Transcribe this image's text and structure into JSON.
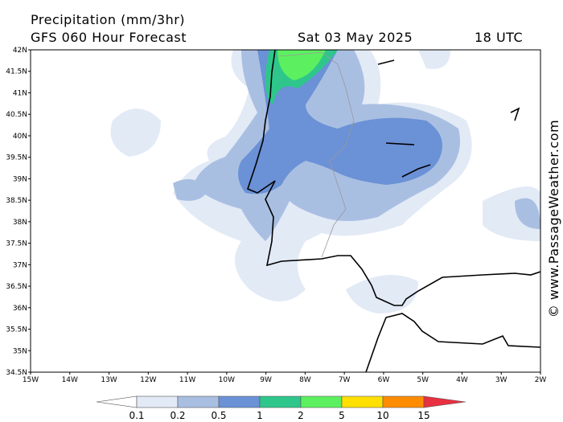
{
  "header": {
    "title": "Precipitation (mm/3hr)",
    "model": "GFS 060 Hour Forecast",
    "date": "Sat 03 May 2025",
    "time": "18 UTC"
  },
  "watermark": "© www.PassageWeather.com",
  "axes": {
    "lon_labels": [
      "15W",
      "14W",
      "13W",
      "12W",
      "11W",
      "10W",
      "9W",
      "8W",
      "7W",
      "6W",
      "5W",
      "4W",
      "3W",
      "2W"
    ],
    "lat_labels": [
      "42N",
      "41.5N",
      "41N",
      "40.5N",
      "40N",
      "39.5N",
      "39N",
      "38.5N",
      "38N",
      "37.5N",
      "37N",
      "36.5N",
      "36N",
      "35.5N",
      "35N",
      "34.5N"
    ]
  },
  "legend": {
    "levels": [
      0.1,
      0.2,
      0.5,
      1,
      2,
      5,
      10,
      15
    ],
    "colors": [
      "#ffffff",
      "#e2eaf6",
      "#a9bfe2",
      "#6b91d6",
      "#2fc68c",
      "#5cf060",
      "#ffe000",
      "#ff8c00",
      "#e83040"
    ]
  }
}
